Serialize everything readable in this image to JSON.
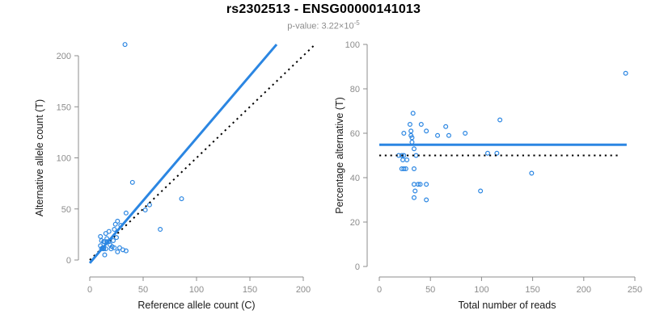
{
  "header": {
    "title": "rs2302513 - ENSG00000141013",
    "pvalue_label": "p-value: 3.22×10",
    "pvalue_exponent": "-5"
  },
  "colors": {
    "accent_blue": "#2B86E2",
    "dotted_line": "#000000",
    "tick_label": "#8C8C8C",
    "axis_line": "#8C8C8C",
    "axis_title": "#1A1A1A",
    "subtitle_text": "#8C8C8C",
    "title_text": "#000000",
    "background": "#FFFFFF"
  },
  "chart_data": [
    {
      "type": "scatter",
      "panel": "left",
      "xlabel": "Reference allele count (C)",
      "ylabel": "Alternative allele count (T)",
      "xlim": [
        0,
        200
      ],
      "ylim": [
        0,
        200
      ],
      "xticks": [
        0,
        50,
        100,
        150,
        200
      ],
      "yticks": [
        0,
        50,
        100,
        150,
        200
      ],
      "grid": false,
      "legend": "none",
      "marker": "open-circle",
      "points": [
        [
          33,
          211
        ],
        [
          40,
          76
        ],
        [
          86,
          60
        ],
        [
          56,
          54
        ],
        [
          52,
          49
        ],
        [
          34,
          46
        ],
        [
          26,
          38
        ],
        [
          24,
          35
        ],
        [
          29,
          34
        ],
        [
          66,
          30
        ],
        [
          23,
          30
        ],
        [
          18,
          28
        ],
        [
          15,
          26
        ],
        [
          10,
          23
        ],
        [
          25,
          22
        ],
        [
          16,
          21
        ],
        [
          22,
          19
        ],
        [
          11,
          19
        ],
        [
          13,
          18
        ],
        [
          14,
          18
        ],
        [
          16,
          18
        ],
        [
          18,
          18
        ],
        [
          19,
          15
        ],
        [
          10,
          14
        ],
        [
          21,
          13
        ],
        [
          12,
          12
        ],
        [
          13,
          12
        ],
        [
          23,
          12
        ],
        [
          28,
          12
        ],
        [
          11,
          11
        ],
        [
          13,
          11
        ],
        [
          15,
          11
        ],
        [
          20,
          11
        ],
        [
          31,
          10
        ],
        [
          34,
          9
        ],
        [
          26,
          8
        ],
        [
          14,
          5
        ]
      ],
      "lines": [
        {
          "name": "identity-line",
          "style": "dotted",
          "color": "#000000",
          "width": 2,
          "from": [
            0,
            0
          ],
          "to": [
            210,
            210
          ]
        },
        {
          "name": "regression-line",
          "style": "solid",
          "color": "#2B86E2",
          "width": 3,
          "from": [
            0,
            -3
          ],
          "to": [
            175,
            211
          ]
        }
      ]
    },
    {
      "type": "scatter",
      "panel": "right",
      "xlabel": "Total number of reads",
      "ylabel": "Percentage alternative (T)",
      "xlim": [
        0,
        250
      ],
      "ylim": [
        0,
        100
      ],
      "xticks": [
        0,
        50,
        100,
        150,
        200,
        250
      ],
      "yticks": [
        0,
        20,
        40,
        60,
        80,
        100
      ],
      "grid": false,
      "legend": "none",
      "marker": "open-circle",
      "points": [
        [
          19,
          50
        ],
        [
          22,
          50
        ],
        [
          24,
          50
        ],
        [
          36,
          50
        ],
        [
          23,
          48
        ],
        [
          27,
          48
        ],
        [
          22,
          44
        ],
        [
          24,
          44
        ],
        [
          26,
          44
        ],
        [
          34,
          44
        ],
        [
          24,
          60
        ],
        [
          30,
          64
        ],
        [
          31,
          61
        ],
        [
          31,
          59
        ],
        [
          32,
          58
        ],
        [
          32,
          56
        ],
        [
          33,
          69
        ],
        [
          34,
          53
        ],
        [
          34,
          37
        ],
        [
          34,
          31
        ],
        [
          35,
          34
        ],
        [
          38,
          37
        ],
        [
          40,
          37
        ],
        [
          41,
          64
        ],
        [
          46,
          61
        ],
        [
          46,
          37
        ],
        [
          46,
          30
        ],
        [
          57,
          59
        ],
        [
          65,
          63
        ],
        [
          68,
          59
        ],
        [
          84,
          60
        ],
        [
          99,
          34
        ],
        [
          106,
          51
        ],
        [
          115,
          51
        ],
        [
          118,
          66
        ],
        [
          149,
          42
        ],
        [
          241,
          87
        ]
      ],
      "lines": [
        {
          "name": "expected-percentage-line",
          "style": "dotted",
          "color": "#000000",
          "width": 2,
          "from": [
            0,
            50
          ],
          "to": [
            236,
            50
          ]
        },
        {
          "name": "mean-percentage-line",
          "style": "solid",
          "color": "#2B86E2",
          "width": 3,
          "from": [
            0,
            54.8
          ],
          "to": [
            242,
            54.8
          ]
        }
      ]
    }
  ]
}
